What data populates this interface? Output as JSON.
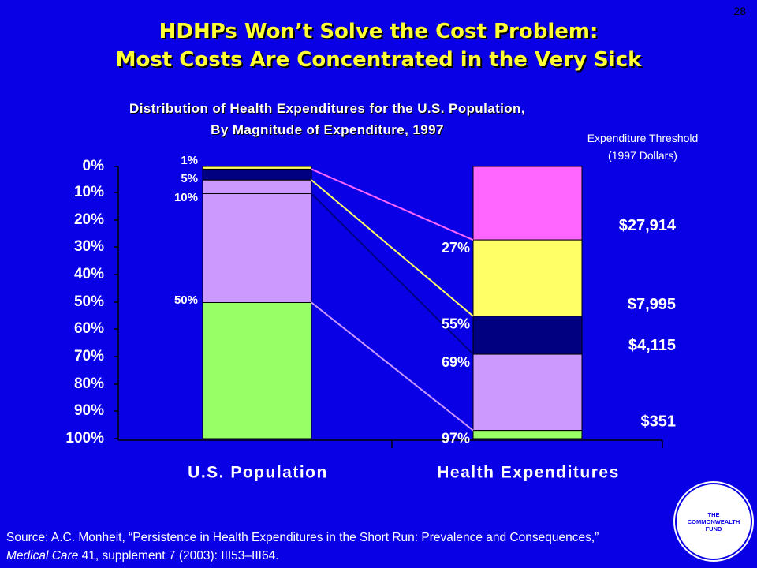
{
  "slide_number": "28",
  "title_line1": "HDHPs Won’t Solve the Cost Problem:",
  "title_line2": "Most Costs Are Concentrated in the Very Sick",
  "threshold_label_line1": "Expenditure Threshold",
  "threshold_label_line2": "(1997 Dollars)",
  "source": {
    "prefix": "Source: A.C. Monheit, “Persistence in Health Expenditures in the Short Run: Prevalence and Consequences,” ",
    "journal": "Medical Care",
    "suffix": " 41, supplement 7 (2003): III53–III64."
  },
  "logo": {
    "line1": "THE",
    "line2": "COMMONWEALTH",
    "line3": "FUND"
  },
  "colors": {
    "background": "#0a00e6",
    "title": "#ffff33",
    "segment_top_1pct": "#ffff66",
    "segment_next_4pct": "#000080",
    "segment_next_5pct": "#cc99ff",
    "segment_next_40pct": "#cc99ff",
    "segment_bottom_50pct": "#99ff66",
    "segment_top_expenditure": "#ff66ff"
  },
  "chart_data": {
    "type": "bar",
    "stacked": true,
    "title_line1": "Distribution of Health Expenditures for the U.S. Population,",
    "title_line2": "By Magnitude of Expenditure, 1997",
    "categories": [
      "U.S. Population",
      "Health Expenditures"
    ],
    "y_axis": {
      "range": [
        0,
        100
      ],
      "inverted": true,
      "ticks": [
        "0%",
        "10%",
        "20%",
        "30%",
        "40%",
        "50%",
        "60%",
        "70%",
        "80%",
        "90%",
        "100%"
      ]
    },
    "population_bar": {
      "segments": [
        {
          "from": 0,
          "to": 1,
          "color": "#ffff66",
          "label": "1%"
        },
        {
          "from": 1,
          "to": 5,
          "color": "#000080",
          "label": "5%"
        },
        {
          "from": 5,
          "to": 10,
          "color": "#cc99ff",
          "label": "10%"
        },
        {
          "from": 10,
          "to": 50,
          "color": "#cc99ff",
          "label": ""
        },
        {
          "from": 50,
          "to": 100,
          "color": "#99ff66",
          "label": "50%"
        }
      ]
    },
    "expenditure_bar": {
      "segments": [
        {
          "from": 0,
          "to": 27,
          "color": "#ff66ff",
          "label": "27%"
        },
        {
          "from": 27,
          "to": 55,
          "color": "#ffff66",
          "label": "55%"
        },
        {
          "from": 55,
          "to": 69,
          "color": "#000080",
          "label": "69%"
        },
        {
          "from": 69,
          "to": 97,
          "color": "#cc99ff",
          "label": "97%"
        },
        {
          "from": 97,
          "to": 100,
          "color": "#99ff66",
          "label": ""
        }
      ]
    },
    "connectors": [
      {
        "population": 1,
        "expenditure": 27,
        "color": "#ff66ff"
      },
      {
        "population": 5,
        "expenditure": 55,
        "color": "#ffff66"
      },
      {
        "population": 10,
        "expenditure": 69,
        "color": "#000080"
      },
      {
        "population": 50,
        "expenditure": 97,
        "color": "#cc99ff"
      }
    ],
    "thresholds": [
      {
        "value": "$27,914",
        "level": 22
      },
      {
        "value": "$7,995",
        "level": 51
      },
      {
        "value": "$4,115",
        "level": 66
      },
      {
        "value": "$351",
        "level": 94
      }
    ]
  }
}
